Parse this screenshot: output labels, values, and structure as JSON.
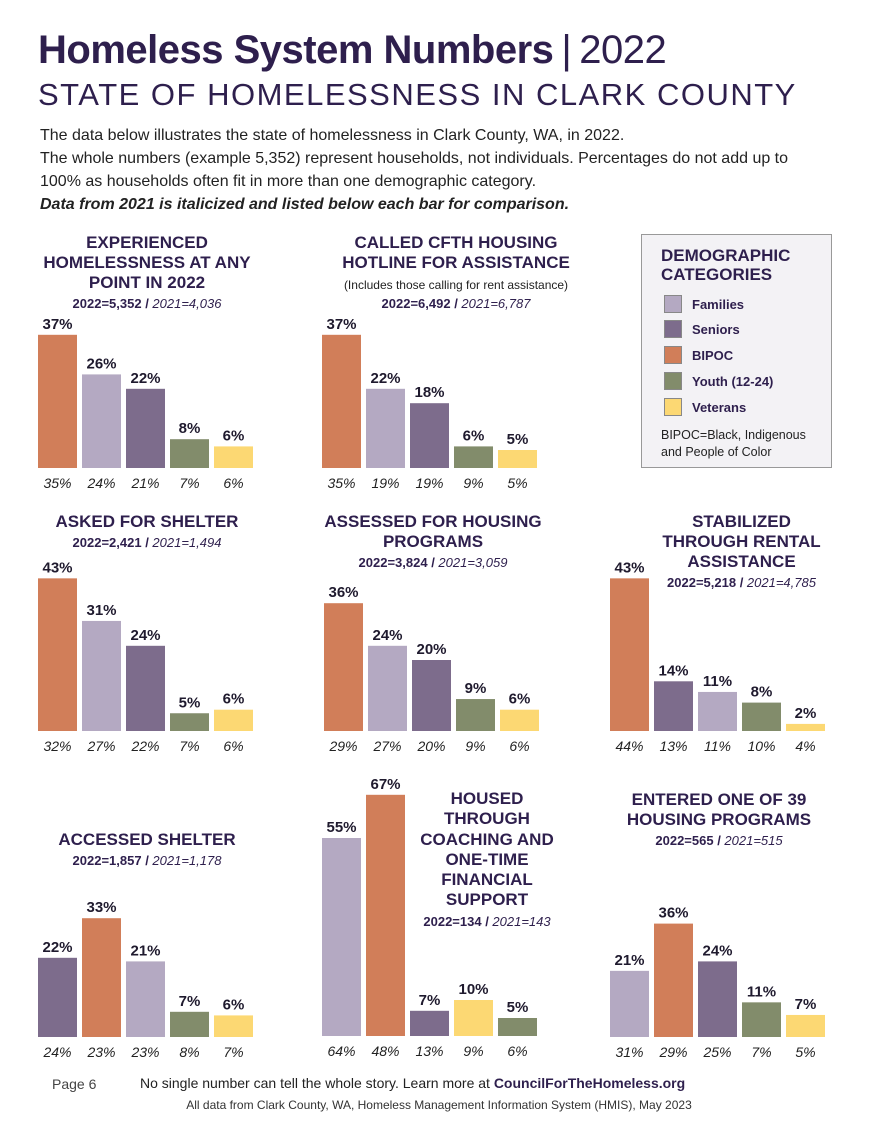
{
  "header": {
    "title": "Homeless System Numbers",
    "separator": "|",
    "year": "2022",
    "subtitle": "STATE OF HOMELESSNESS IN CLARK COUNTY",
    "intro_1": "The data below illustrates the state of homelessness in Clark County, WA, in 2022.",
    "intro_2": "The whole numbers (example 5,352) represent households, not individuals. Percentages do not add up to 100% as households often fit in more than one demographic category.",
    "intro_3": "Data from 2021 is italicized and listed below each bar for comparison."
  },
  "legend": {
    "title": "DEMOGRAPHIC CATEGORIES",
    "items": [
      {
        "label": "Families",
        "color": "#b4a9c2"
      },
      {
        "label": "Seniors",
        "color": "#7d6c8c"
      },
      {
        "label": "BIPOC",
        "color": "#d17e59"
      },
      {
        "label": "Youth (12-24)",
        "color": "#828c6b"
      },
      {
        "label": "Veterans",
        "color": "#fcd873"
      }
    ],
    "note": "BIPOC=Black, Indigenous and People of Color"
  },
  "colors": {
    "Families": "#b4a9c2",
    "Seniors": "#7d6c8c",
    "BIPOC": "#d17e59",
    "Youth": "#828c6b",
    "Veterans": "#fcd873"
  },
  "chart_data": [
    {
      "type": "bar",
      "title": "EXPERIENCED HOMELESSNESS AT ANY POINT IN 2022",
      "stat_2022": "2022=5,352",
      "stat_2021": "2021=4,036",
      "categories": [
        "BIPOC",
        "Families",
        "Seniors",
        "Youth",
        "Veterans"
      ],
      "values": [
        37,
        26,
        22,
        8,
        6
      ],
      "labels": [
        "37%",
        "26%",
        "22%",
        "8%",
        "6%"
      ],
      "prev_labels": [
        "35%",
        "24%",
        "21%",
        "7%",
        "6%"
      ]
    },
    {
      "type": "bar",
      "title": "CALLED CFTH HOUSING HOTLINE FOR ASSISTANCE",
      "note": "(Includes those calling for rent assistance)",
      "stat_2022": "2022=6,492",
      "stat_2021": "2021=6,787",
      "categories": [
        "BIPOC",
        "Families",
        "Seniors",
        "Youth",
        "Veterans"
      ],
      "values": [
        37,
        22,
        18,
        6,
        5
      ],
      "labels": [
        "37%",
        "22%",
        "18%",
        "6%",
        "5%"
      ],
      "prev_labels": [
        "35%",
        "19%",
        "19%",
        "9%",
        "5%"
      ]
    },
    {
      "type": "bar",
      "title": "ASKED FOR SHELTER",
      "stat_2022": "2022=2,421",
      "stat_2021": "2021=1,494",
      "categories": [
        "BIPOC",
        "Families",
        "Seniors",
        "Youth",
        "Veterans"
      ],
      "values": [
        43,
        31,
        24,
        5,
        6
      ],
      "labels": [
        "43%",
        "31%",
        "24%",
        "5%",
        "6%"
      ],
      "prev_labels": [
        "32%",
        "27%",
        "22%",
        "7%",
        "6%"
      ]
    },
    {
      "type": "bar",
      "title": "ASSESSED FOR HOUSING PROGRAMS",
      "stat_2022": "2022=3,824",
      "stat_2021": "2021=3,059",
      "categories": [
        "BIPOC",
        "Families",
        "Seniors",
        "Youth",
        "Veterans"
      ],
      "values": [
        36,
        24,
        20,
        9,
        6
      ],
      "labels": [
        "36%",
        "24%",
        "20%",
        "9%",
        "6%"
      ],
      "prev_labels": [
        "29%",
        "27%",
        "20%",
        "9%",
        "6%"
      ]
    },
    {
      "type": "bar",
      "title": "STABILIZED THROUGH RENTAL ASSISTANCE",
      "stat_2022": "2022=5,218",
      "stat_2021": "2021=4,785",
      "categories": [
        "BIPOC",
        "Seniors",
        "Families",
        "Youth",
        "Veterans"
      ],
      "values": [
        43,
        14,
        11,
        8,
        2
      ],
      "labels": [
        "43%",
        "14%",
        "11%",
        "8%",
        "2%"
      ],
      "prev_labels": [
        "44%",
        "13%",
        "11%",
        "10%",
        "4%"
      ]
    },
    {
      "type": "bar",
      "title": "ACCESSED SHELTER",
      "stat_2022": "2022=1,857",
      "stat_2021": "2021=1,178",
      "categories": [
        "Seniors",
        "BIPOC",
        "Families",
        "Youth",
        "Veterans"
      ],
      "values": [
        22,
        33,
        21,
        7,
        6
      ],
      "labels": [
        "22%",
        "33%",
        "21%",
        "7%",
        "6%"
      ],
      "prev_labels": [
        "24%",
        "23%",
        "23%",
        "8%",
        "7%"
      ]
    },
    {
      "type": "bar",
      "title": "HOUSED THROUGH COACHING AND ONE-TIME FINANCIAL SUPPORT",
      "stat_2022": "2022=134",
      "stat_2021": "2021=143",
      "categories": [
        "Families",
        "BIPOC",
        "Seniors",
        "Veterans",
        "Youth"
      ],
      "values": [
        55,
        67,
        7,
        10,
        5
      ],
      "labels": [
        "55%",
        "67%",
        "7%",
        "10%",
        "5%"
      ],
      "prev_labels": [
        "64%",
        "48%",
        "13%",
        "9%",
        "6%"
      ]
    },
    {
      "type": "bar",
      "title": "ENTERED ONE OF 39 HOUSING PROGRAMS",
      "stat_2022": "2022=565",
      "stat_2021": "2021=515",
      "categories": [
        "Families",
        "BIPOC",
        "Seniors",
        "Youth",
        "Veterans"
      ],
      "values": [
        21,
        36,
        24,
        11,
        7
      ],
      "labels": [
        "21%",
        "36%",
        "24%",
        "11%",
        "7%"
      ],
      "prev_labels": [
        "31%",
        "29%",
        "25%",
        "7%",
        "5%"
      ]
    }
  ],
  "footer": {
    "page": "Page 6",
    "text": "No single number can tell the whole story. Learn more at",
    "link": "CouncilForTheHomeless.org",
    "source": "All data from Clark County, WA, Homeless Management Information System (HMIS), May 2023"
  }
}
